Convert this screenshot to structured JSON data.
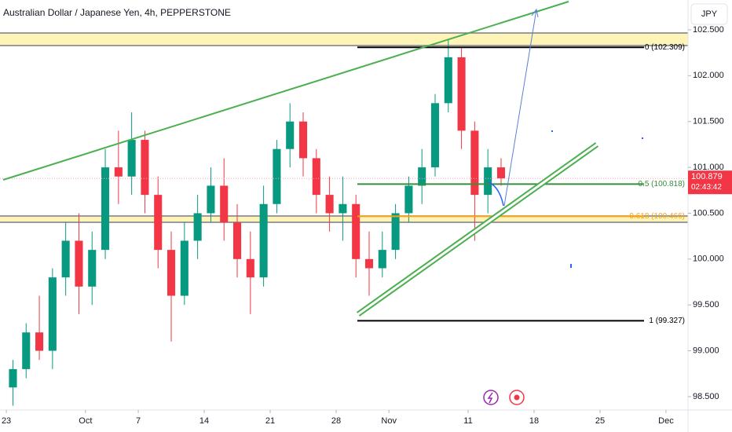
{
  "chart_data": {
    "type": "candlestick",
    "title": "Australian Dollar / Japanese Yen, 4h, PEPPERSTONE",
    "currency": "JPY",
    "up_color": "#089981",
    "down_color": "#f23645",
    "grid": false,
    "x": [
      0.5,
      1.5,
      2.5,
      3.5,
      4.5,
      5.5,
      6.5,
      7.5,
      8.5,
      9.5,
      10.5,
      11.5,
      12.5,
      13.5,
      14.5,
      15.5,
      16.5,
      17.5,
      18.5,
      19.5,
      20.5,
      21.5,
      22.5,
      23.5,
      24.5,
      25.5,
      26.5,
      27.5,
      28.5,
      29.5,
      30.5,
      31.5,
      32.5,
      33.5,
      34.5,
      35.5,
      36.5,
      37.5
    ],
    "open": [
      98.6,
      98.8,
      99.2,
      99.0,
      99.8,
      100.2,
      99.7,
      100.1,
      101.0,
      100.9,
      101.3,
      100.7,
      100.1,
      99.6,
      100.2,
      100.5,
      100.8,
      100.4,
      100.0,
      99.8,
      100.6,
      101.2,
      101.5,
      101.1,
      100.7,
      100.5,
      100.6,
      100.0,
      99.9,
      100.1,
      100.5,
      100.8,
      101.0,
      101.7,
      102.2,
      101.4,
      100.7,
      101.0
    ],
    "high": [
      98.9,
      99.3,
      99.6,
      99.9,
      100.4,
      100.5,
      100.3,
      101.2,
      101.4,
      101.6,
      101.4,
      100.9,
      100.3,
      100.4,
      100.7,
      101.0,
      101.1,
      100.6,
      100.3,
      100.8,
      101.3,
      101.7,
      101.6,
      101.2,
      100.9,
      100.9,
      100.7,
      100.3,
      100.3,
      100.6,
      100.9,
      101.2,
      101.8,
      102.4,
      102.3,
      101.5,
      101.2,
      101.1
    ],
    "low": [
      98.4,
      98.7,
      98.9,
      98.8,
      99.6,
      99.4,
      99.5,
      100.0,
      100.6,
      100.7,
      100.5,
      99.9,
      99.1,
      99.5,
      100.0,
      100.4,
      100.2,
      99.8,
      99.4,
      99.7,
      100.5,
      101.0,
      100.9,
      100.5,
      100.3,
      100.2,
      99.8,
      99.6,
      99.8,
      100.0,
      100.4,
      100.6,
      100.9,
      101.6,
      101.2,
      100.2,
      100.5,
      100.8
    ],
    "close": [
      98.8,
      99.2,
      99.0,
      99.8,
      100.2,
      99.7,
      100.1,
      101.0,
      100.9,
      101.3,
      100.7,
      100.1,
      99.6,
      100.2,
      100.5,
      100.8,
      100.4,
      100.0,
      99.8,
      100.6,
      101.2,
      101.5,
      101.1,
      100.7,
      100.5,
      100.6,
      100.0,
      99.9,
      100.1,
      100.5,
      100.8,
      101.0,
      101.7,
      102.2,
      101.4,
      100.7,
      101.0,
      100.88
    ],
    "xlim": [
      -0.48,
      51.67
    ],
    "xticks": [
      {
        "value": 0,
        "label": "23"
      },
      {
        "value": 6,
        "label": "Oct"
      },
      {
        "value": 10,
        "label": "7"
      },
      {
        "value": 15,
        "label": "14"
      },
      {
        "value": 20,
        "label": "21"
      },
      {
        "value": 25,
        "label": "28"
      },
      {
        "value": 29,
        "label": "Nov"
      },
      {
        "value": 35,
        "label": "11"
      },
      {
        "value": 40,
        "label": "18"
      },
      {
        "value": 45,
        "label": "25"
      },
      {
        "value": 50,
        "label": "Dec"
      }
    ],
    "ylim": [
      98.354,
      102.825
    ],
    "yticks": [
      {
        "value": 98.5,
        "label": "98.500"
      },
      {
        "value": 99,
        "label": "99.000"
      },
      {
        "value": 99.5,
        "label": "99.500"
      },
      {
        "value": 100,
        "label": "100.000"
      },
      {
        "value": 100.5,
        "label": "100.500"
      },
      {
        "value": 101,
        "label": "101.000"
      },
      {
        "value": 101.5,
        "label": "101.500"
      },
      {
        "value": 102,
        "label": "102.000"
      },
      {
        "value": 102.5,
        "label": "102.500"
      }
    ],
    "fib_levels": [
      {
        "value": 102.309,
        "label": "0 (102.309)",
        "color": "#000000"
      },
      {
        "value": 100.818,
        "label": "0.5 (100.818)",
        "color": "#388e3c"
      },
      {
        "value": 100.466,
        "label": "0.618 (100.466)",
        "color": "#f7a21b"
      },
      {
        "value": 99.327,
        "label": "1 (99.327)",
        "color": "#000000"
      }
    ],
    "last_price": 100.879,
    "countdown": "02:43:42"
  }
}
